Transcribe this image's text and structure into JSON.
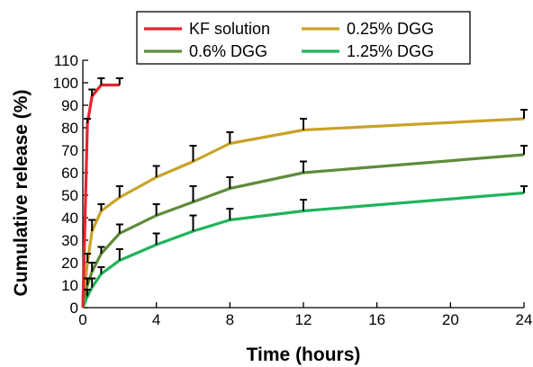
{
  "chart_data": {
    "type": "line",
    "xlabel": "Time (hours)",
    "ylabel": "Cumulative release (%)",
    "xlim": [
      0,
      24
    ],
    "ylim": [
      0,
      110
    ],
    "x_ticks": [
      "0",
      "4",
      "8",
      "12",
      "16",
      "20",
      "24"
    ],
    "y_ticks": [
      "0",
      "10",
      "20",
      "30",
      "40",
      "50",
      "60",
      "70",
      "80",
      "90",
      "100",
      "110"
    ],
    "grid": false,
    "legend_position": "top-center",
    "series": [
      {
        "name": "KF solution",
        "color": "#e8232a",
        "x": [
          0,
          0.25,
          0.5,
          1,
          2
        ],
        "y": [
          0,
          82,
          94,
          99,
          99
        ],
        "error": [
          0,
          2,
          3,
          3,
          3
        ]
      },
      {
        "name": "0.25% DGG",
        "color": "#c9a227",
        "x": [
          0,
          0.25,
          0.5,
          1,
          2,
          4,
          6,
          8,
          12,
          24
        ],
        "y": [
          0,
          20,
          34,
          43,
          49,
          58,
          65,
          73,
          79,
          84
        ],
        "error": [
          0,
          4,
          5,
          3,
          5,
          5,
          7,
          5,
          5,
          4
        ]
      },
      {
        "name": "0.6% DGG",
        "color": "#5f8b3a",
        "x": [
          0,
          0.25,
          0.5,
          1,
          2,
          4,
          6,
          8,
          12,
          24
        ],
        "y": [
          0,
          10,
          16,
          24,
          33,
          41,
          47,
          53,
          60,
          68
        ],
        "error": [
          0,
          3,
          4,
          3,
          4,
          5,
          7,
          5,
          5,
          4
        ]
      },
      {
        "name": "1.25% DGG",
        "color": "#1fb45a",
        "x": [
          0,
          0.25,
          0.5,
          1,
          2,
          4,
          6,
          8,
          12,
          24
        ],
        "y": [
          0,
          5,
          9,
          15,
          21,
          28,
          34,
          39,
          43,
          51
        ],
        "error": [
          0,
          3,
          4,
          3,
          5,
          5,
          7,
          5,
          5,
          3
        ]
      }
    ],
    "legend_layout": [
      [
        "KF solution",
        "0.25% DGG"
      ],
      [
        "0.6% DGG",
        "1.25% DGG"
      ]
    ]
  }
}
